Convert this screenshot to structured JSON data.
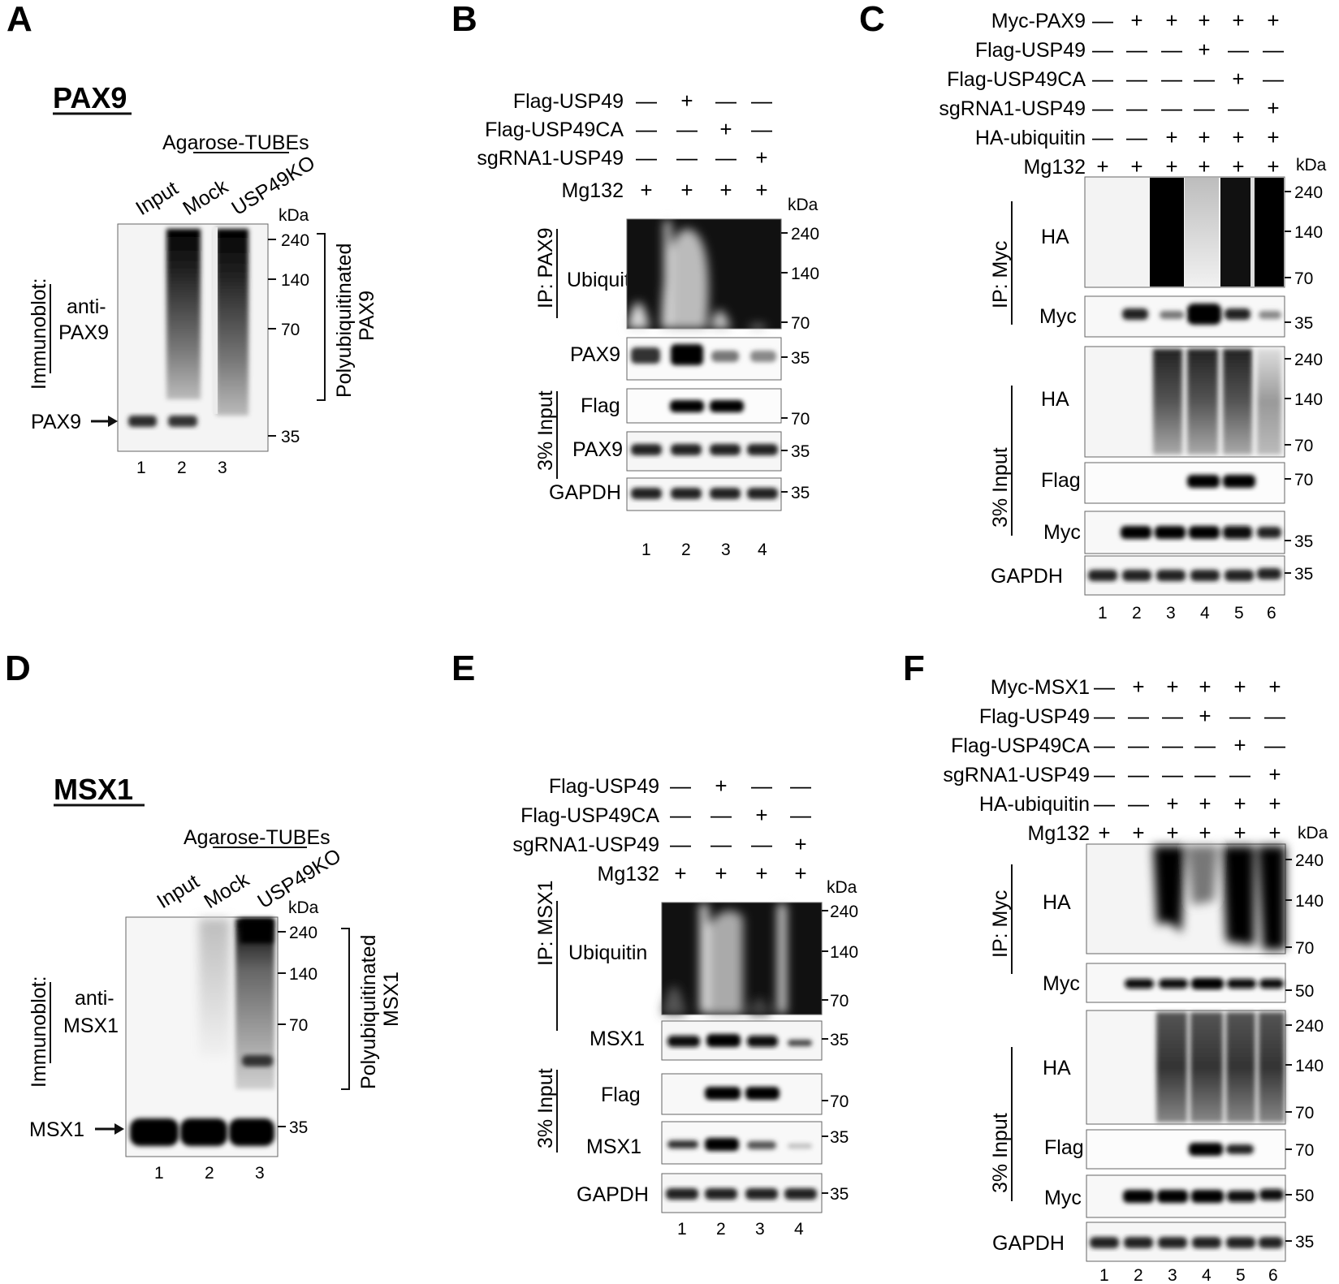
{
  "figure": {
    "A": {
      "letter": "A",
      "protein": "PAX9",
      "header": "Agarose-TUBEs",
      "lanes": [
        "Input",
        "Mock",
        "USP49KO"
      ],
      "side_label": "Immunoblot:",
      "antibody_l1": "anti-",
      "antibody_l2": "PAX9",
      "kda": "kDa",
      "markers": [
        "240",
        "140",
        "70",
        "35"
      ],
      "bracket_l1": "Polyubiquitinated",
      "bracket_l2": "PAX9",
      "arrow_label": "PAX9",
      "lane_numbers": [
        "1",
        "2",
        "3"
      ]
    },
    "B": {
      "letter": "B",
      "treatments": [
        {
          "label": "Flag-USP49",
          "signs": [
            "—",
            "+",
            "—",
            "—"
          ]
        },
        {
          "label": "Flag-USP49CA",
          "signs": [
            "—",
            "—",
            "+",
            "—"
          ]
        },
        {
          "label": "sgRNA1-USP49",
          "signs": [
            "—",
            "—",
            "—",
            "+"
          ]
        },
        {
          "label": "Mg132",
          "signs": [
            "+",
            "+",
            "+",
            "+"
          ]
        }
      ],
      "kda": "kDa",
      "ip_label": "IP: PAX9",
      "input_label": "3% Input",
      "blots": [
        {
          "label": "Ubiquitin",
          "markers": [
            "240",
            "140",
            "70"
          ]
        },
        {
          "label": "PAX9",
          "markers": [
            "35"
          ]
        },
        {
          "label": "Flag",
          "markers": [
            "70"
          ]
        },
        {
          "label": "PAX9",
          "markers": [
            "35"
          ]
        },
        {
          "label": "GAPDH",
          "markers": [
            "35"
          ]
        }
      ],
      "lane_numbers": [
        "1",
        "2",
        "3",
        "4"
      ]
    },
    "C": {
      "letter": "C",
      "treatments": [
        {
          "label": "Myc-PAX9",
          "signs": [
            "—",
            "+",
            "+",
            "+",
            "+",
            "+"
          ]
        },
        {
          "label": "Flag-USP49",
          "signs": [
            "—",
            "—",
            "—",
            "+",
            "—",
            "—"
          ]
        },
        {
          "label": "Flag-USP49CA",
          "signs": [
            "—",
            "—",
            "—",
            "—",
            "+",
            "—"
          ]
        },
        {
          "label": "sgRNA1-USP49",
          "signs": [
            "—",
            "—",
            "—",
            "—",
            "—",
            "+"
          ]
        },
        {
          "label": "HA-ubiquitin",
          "signs": [
            "—",
            "—",
            "+",
            "+",
            "+",
            "+"
          ]
        },
        {
          "label": "Mg132",
          "signs": [
            "+",
            "+",
            "+",
            "+",
            "+",
            "+"
          ]
        }
      ],
      "kda": "kDa",
      "ip_label": "IP: Myc",
      "input_label": "3% Input",
      "blots": [
        {
          "label": "HA",
          "markers": [
            "240",
            "140",
            "70"
          ]
        },
        {
          "label": "Myc",
          "markers": [
            "35"
          ]
        },
        {
          "label": "HA",
          "markers": [
            "240",
            "140",
            "70"
          ]
        },
        {
          "label": "Flag",
          "markers": [
            "70"
          ]
        },
        {
          "label": "Myc",
          "markers": [
            "35"
          ]
        },
        {
          "label": "GAPDH",
          "markers": [
            "35"
          ]
        }
      ],
      "lane_numbers": [
        "1",
        "2",
        "3",
        "4",
        "5",
        "6"
      ]
    },
    "D": {
      "letter": "D",
      "protein": "MSX1",
      "header": "Agarose-TUBEs",
      "lanes": [
        "Input",
        "Mock",
        "USP49KO"
      ],
      "side_label": "Immunoblot:",
      "antibody_l1": "anti-",
      "antibody_l2": "MSX1",
      "kda": "kDa",
      "markers": [
        "240",
        "140",
        "70",
        "35"
      ],
      "bracket_l1": "Polyubiquitinated",
      "bracket_l2": "MSX1",
      "arrow_label": "MSX1",
      "lane_numbers": [
        "1",
        "2",
        "3"
      ]
    },
    "E": {
      "letter": "E",
      "treatments": [
        {
          "label": "Flag-USP49",
          "signs": [
            "—",
            "+",
            "—",
            "—"
          ]
        },
        {
          "label": "Flag-USP49CA",
          "signs": [
            "—",
            "—",
            "+",
            "—"
          ]
        },
        {
          "label": "sgRNA1-USP49",
          "signs": [
            "—",
            "—",
            "—",
            "+"
          ]
        },
        {
          "label": "Mg132",
          "signs": [
            "+",
            "+",
            "+",
            "+"
          ]
        }
      ],
      "kda": "kDa",
      "ip_label": "IP: MSX1",
      "input_label": "3% Input",
      "blots": [
        {
          "label": "Ubiquitin",
          "markers": [
            "240",
            "140",
            "70"
          ]
        },
        {
          "label": "MSX1",
          "markers": [
            "35"
          ]
        },
        {
          "label": "Flag",
          "markers": [
            "70"
          ]
        },
        {
          "label": "MSX1",
          "markers": [
            "35"
          ]
        },
        {
          "label": "GAPDH",
          "markers": [
            "35"
          ]
        }
      ],
      "lane_numbers": [
        "1",
        "2",
        "3",
        "4"
      ]
    },
    "F": {
      "letter": "F",
      "treatments": [
        {
          "label": "Myc-MSX1",
          "signs": [
            "—",
            "+",
            "+",
            "+",
            "+",
            "+"
          ]
        },
        {
          "label": "Flag-USP49",
          "signs": [
            "—",
            "—",
            "—",
            "+",
            "—",
            "—"
          ]
        },
        {
          "label": "Flag-USP49CA",
          "signs": [
            "—",
            "—",
            "—",
            "—",
            "+",
            "—"
          ]
        },
        {
          "label": "sgRNA1-USP49",
          "signs": [
            "—",
            "—",
            "—",
            "—",
            "—",
            "+"
          ]
        },
        {
          "label": "HA-ubiquitin",
          "signs": [
            "—",
            "—",
            "+",
            "+",
            "+",
            "+"
          ]
        },
        {
          "label": "Mg132",
          "signs": [
            "+",
            "+",
            "+",
            "+",
            "+",
            "+"
          ]
        }
      ],
      "kda": "kDa",
      "ip_label": "IP: Myc",
      "input_label": "3% Input",
      "blots": [
        {
          "label": "HA",
          "markers": [
            "240",
            "140",
            "70"
          ]
        },
        {
          "label": "Myc",
          "markers": [
            "50"
          ]
        },
        {
          "label": "HA",
          "markers": [
            "240",
            "140",
            "70"
          ]
        },
        {
          "label": "Flag",
          "markers": [
            "70"
          ]
        },
        {
          "label": "Myc",
          "markers": [
            "50"
          ]
        },
        {
          "label": "GAPDH",
          "markers": [
            "35"
          ]
        }
      ],
      "lane_numbers": [
        "1",
        "2",
        "3",
        "4",
        "5",
        "6"
      ]
    }
  }
}
